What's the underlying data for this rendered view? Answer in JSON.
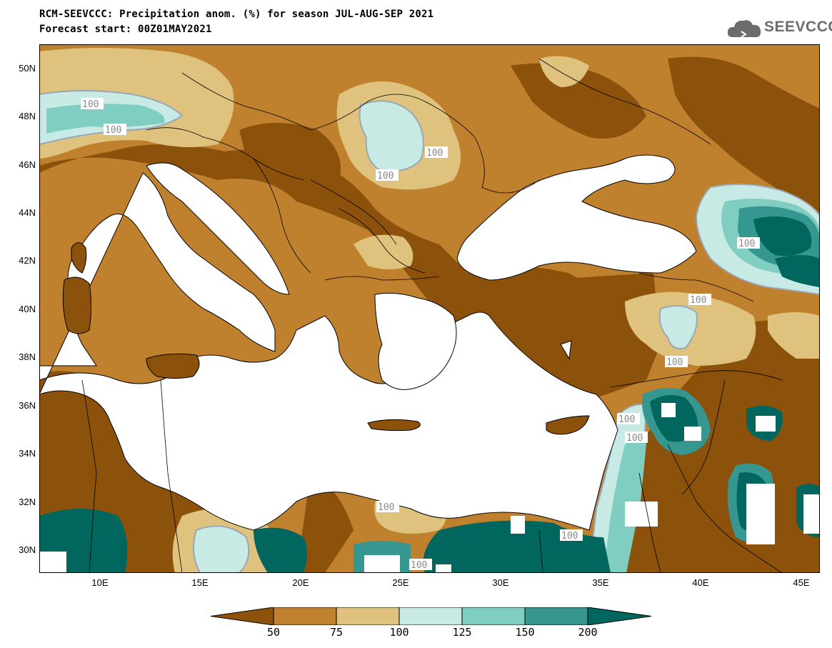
{
  "header": {
    "title": "RCM-SEEVCCC: Precipitation anom. (%) for season JUL-AUG-SEP 2021",
    "subtitle": "Forecast start: 00Z01MAY2021"
  },
  "logo": {
    "text": "SEEVCCC",
    "icon": "cloud-icon"
  },
  "map": {
    "lon_range": [
      7,
      46
    ],
    "lat_range": [
      29,
      51
    ],
    "lat_ticks": [
      "50N",
      "48N",
      "46N",
      "44N",
      "42N",
      "40N",
      "38N",
      "36N",
      "34N",
      "32N",
      "30N"
    ],
    "lon_ticks": [
      "10E",
      "15E",
      "20E",
      "25E",
      "30E",
      "35E",
      "40E",
      "45E"
    ],
    "contour_label": "100",
    "colors": {
      "lt50": "#8c510a",
      "50_75": "#bf812d",
      "75_100": "#dfc27d",
      "100_125": "#c7eae5",
      "125_150": "#80cdc1",
      "150_200": "#35978f",
      "gt200": "#01665e",
      "sea": "#ffffff"
    }
  },
  "legend": {
    "labels": [
      "50",
      "75",
      "100",
      "125",
      "150",
      "200"
    ],
    "colors": [
      "#8c510a",
      "#bf812d",
      "#dfc27d",
      "#c7eae5",
      "#80cdc1",
      "#35978f",
      "#01665e"
    ]
  }
}
